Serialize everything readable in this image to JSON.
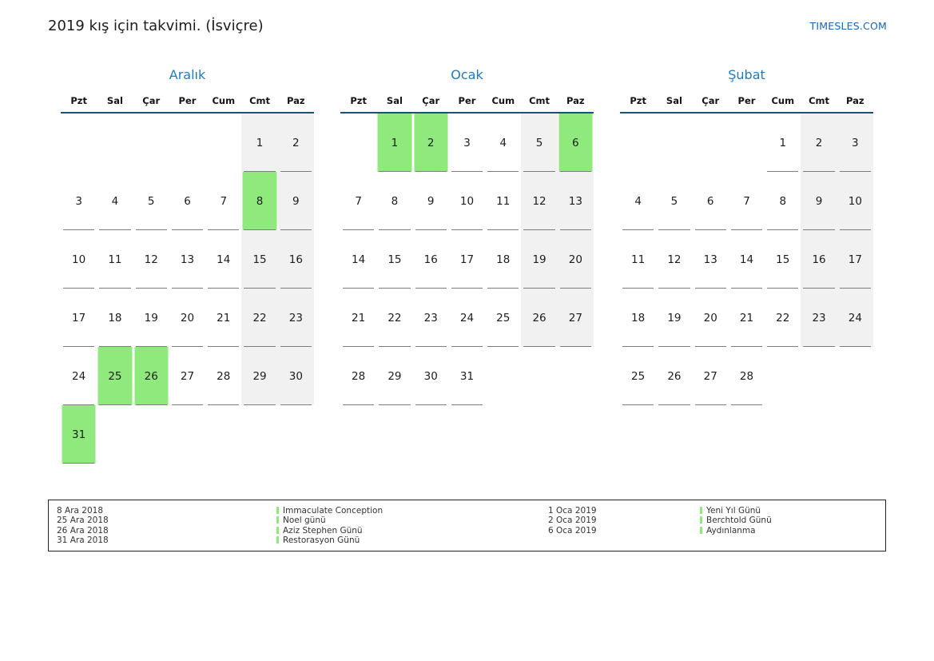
{
  "page": {
    "title": "2019 kış için takvimi. (İsviçre)",
    "site_link": "TIMESLES.COM"
  },
  "colors": {
    "accent_blue": "#1e7bc0",
    "header_line": "#1a5276",
    "holiday_green": "#8fe97d",
    "weekend_bg": "#f1f1f1",
    "link_blue": "#1565c0"
  },
  "weekday_headers": [
    "Pzt",
    "Sal",
    "Çar",
    "Per",
    "Cum",
    "Cmt",
    "Paz"
  ],
  "months": [
    {
      "name": "Aralık",
      "holidays": [
        8,
        25,
        26,
        31
      ],
      "weeks": [
        [
          null,
          null,
          null,
          null,
          null,
          1,
          2
        ],
        [
          3,
          4,
          5,
          6,
          7,
          8,
          9
        ],
        [
          10,
          11,
          12,
          13,
          14,
          15,
          16
        ],
        [
          17,
          18,
          19,
          20,
          21,
          22,
          23
        ],
        [
          24,
          25,
          26,
          27,
          28,
          29,
          30
        ],
        [
          31,
          null,
          null,
          null,
          null,
          null,
          null
        ]
      ]
    },
    {
      "name": "Ocak",
      "holidays": [
        1,
        2,
        6
      ],
      "weeks": [
        [
          null,
          1,
          2,
          3,
          4,
          5,
          6
        ],
        [
          7,
          8,
          9,
          10,
          11,
          12,
          13
        ],
        [
          14,
          15,
          16,
          17,
          18,
          19,
          20
        ],
        [
          21,
          22,
          23,
          24,
          25,
          26,
          27
        ],
        [
          28,
          29,
          30,
          31,
          null,
          null,
          null
        ]
      ]
    },
    {
      "name": "Şubat",
      "holidays": [],
      "weeks": [
        [
          null,
          null,
          null,
          null,
          1,
          2,
          3
        ],
        [
          4,
          5,
          6,
          7,
          8,
          9,
          10
        ],
        [
          11,
          12,
          13,
          14,
          15,
          16,
          17
        ],
        [
          18,
          19,
          20,
          21,
          22,
          23,
          24
        ],
        [
          25,
          26,
          27,
          28,
          null,
          null,
          null
        ]
      ]
    }
  ],
  "legend": {
    "groups": [
      {
        "entries": [
          {
            "date": "8 Ara 2018",
            "name": "Immaculate Conception"
          },
          {
            "date": "25 Ara 2018",
            "name": "Noel günü"
          },
          {
            "date": "26 Ara 2018",
            "name": "Aziz Stephen Günü"
          },
          {
            "date": "31 Ara 2018",
            "name": "Restorasyon Günü"
          }
        ]
      },
      {
        "entries": [
          {
            "date": "1 Oca 2019",
            "name": "Yeni Yıl Günü"
          },
          {
            "date": "2 Oca 2019",
            "name": "Berchtold Günü"
          },
          {
            "date": "6 Oca 2019",
            "name": "Aydınlanma"
          }
        ]
      }
    ]
  }
}
